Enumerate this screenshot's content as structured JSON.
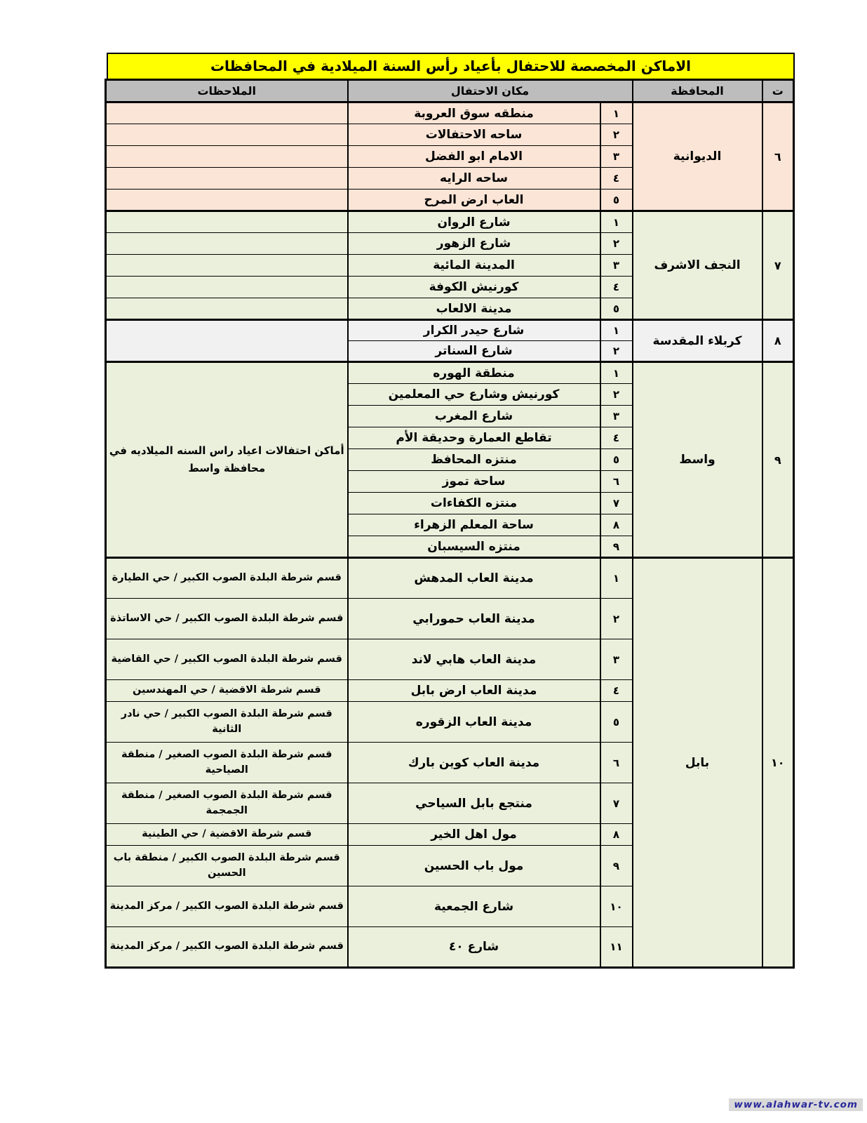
{
  "title": "الاماكن المخصصة للاحتفال بأعياد رأس السنة الميلادية في المحافظات",
  "footer": {
    "url": "www.alahwar-tv.com"
  },
  "colors": {
    "title_bg": "#ffff00",
    "header_bg": "#bdbdbd",
    "peach": "#fbe5d6",
    "green": "#eaf0dc",
    "light_gray": "#f1f1f1",
    "footer_text": "#28289b"
  },
  "table": {
    "headers": {
      "serial": "ت",
      "governorate": "المحافظة",
      "place": "مكان الاحتفال",
      "notes": "الملاحظات"
    },
    "groups": [
      {
        "no": "٦",
        "governorate": "الديوانية",
        "bg": "#fbe5d6",
        "rows": [
          {
            "num": "١",
            "place": "منطقه سوق العروبة",
            "note": ""
          },
          {
            "num": "٢",
            "place": "ساحه الاحتفالات",
            "note": ""
          },
          {
            "num": "٣",
            "place": "الامام ابو الفضل",
            "note": ""
          },
          {
            "num": "٤",
            "place": "ساحه الرايه",
            "note": ""
          },
          {
            "num": "٥",
            "place": "العاب ارض المرح",
            "note": ""
          }
        ]
      },
      {
        "no": "٧",
        "governorate": "النجف الاشرف",
        "bg": "#eaf0dc",
        "rows": [
          {
            "num": "١",
            "place": "شارع الروان",
            "note": ""
          },
          {
            "num": "٢",
            "place": "شارع الزهور",
            "note": ""
          },
          {
            "num": "٣",
            "place": "المدينة المائية",
            "note": ""
          },
          {
            "num": "٤",
            "place": "كورنيش الكوفة",
            "note": ""
          },
          {
            "num": "٥",
            "place": "مدينة الالعاب",
            "note": ""
          }
        ]
      },
      {
        "no": "٨",
        "governorate": "كربلاء المقدسة",
        "bg": "#f1f1f1",
        "notes_merged": "",
        "rows": [
          {
            "num": "١",
            "place": "شارع حيدر الكرار"
          },
          {
            "num": "٢",
            "place": "شارع السناتر"
          }
        ]
      },
      {
        "no": "٩",
        "governorate": "واسط",
        "bg": "#eaf0dc",
        "notes_merged": "أماكن احتفالات اعياد راس السنه الميلاديه في محافظة واسط",
        "rows": [
          {
            "num": "١",
            "place": "منطقة الهوره"
          },
          {
            "num": "٢",
            "place": "كورنيش وشارع حي المعلمين"
          },
          {
            "num": "٣",
            "place": "شارع المغرب"
          },
          {
            "num": "٤",
            "place": "تقاطع العمارة وحديقة الأم"
          },
          {
            "num": "٥",
            "place": "منتزه المحافظ"
          },
          {
            "num": "٦",
            "place": "ساحة تموز"
          },
          {
            "num": "٧",
            "place": "منتزه الكفاءات"
          },
          {
            "num": "٨",
            "place": "ساحة المعلم الزهراء"
          },
          {
            "num": "٩",
            "place": "منتزه السيسبان"
          }
        ]
      },
      {
        "no": "١٠",
        "governorate": "بابل",
        "bg": "#eaf0dc",
        "rows": [
          {
            "num": "١",
            "place": "مدينة العاب المدهش",
            "note": "قسم شرطة البلدة الصوب الكبير / حي الطيارة"
          },
          {
            "num": "٢",
            "place": "مدينة العاب حمورابي",
            "note": "قسم شرطة البلدة الصوب الكبير / حي الاساتذة"
          },
          {
            "num": "٣",
            "place": "مدينة العاب هابي لاند",
            "note": "قسم شرطة البلدة الصوب الكبير / حي القاضية"
          },
          {
            "num": "٤",
            "place": "مدينة العاب ارض بابل",
            "note": "قسم شرطة الاقضية / حي المهندسين"
          },
          {
            "num": "٥",
            "place": "مدينة العاب الزقوره",
            "note": "قسم شرطة البلدة الصوب الكبير / حي نادر الثانية"
          },
          {
            "num": "٦",
            "place": "مدينة العاب كوين بارك",
            "note": "قسم شرطة البلدة الصوب الصغير / منطقة الصياحية"
          },
          {
            "num": "٧",
            "place": "منتجع بابل السياحي",
            "note": "قسم شرطة البلدة الصوب الصغير / منطقة الجمجمة"
          },
          {
            "num": "٨",
            "place": "مول اهل الخير",
            "note": "قسم شرطة الاقضية / حي الطينية"
          },
          {
            "num": "٩",
            "place": "مول باب الحسين",
            "note": "قسم شرطة البلدة الصوب الكبير / منطقة باب الحسين"
          },
          {
            "num": "١٠",
            "place": "شارع الجمعية",
            "note": "قسم شرطة البلدة الصوب الكبير / مركز المدينة"
          },
          {
            "num": "١١",
            "place": "شارع ٤٠",
            "note": "قسم شرطة البلدة الصوب الكبير / مركز المدينة"
          }
        ]
      }
    ]
  }
}
